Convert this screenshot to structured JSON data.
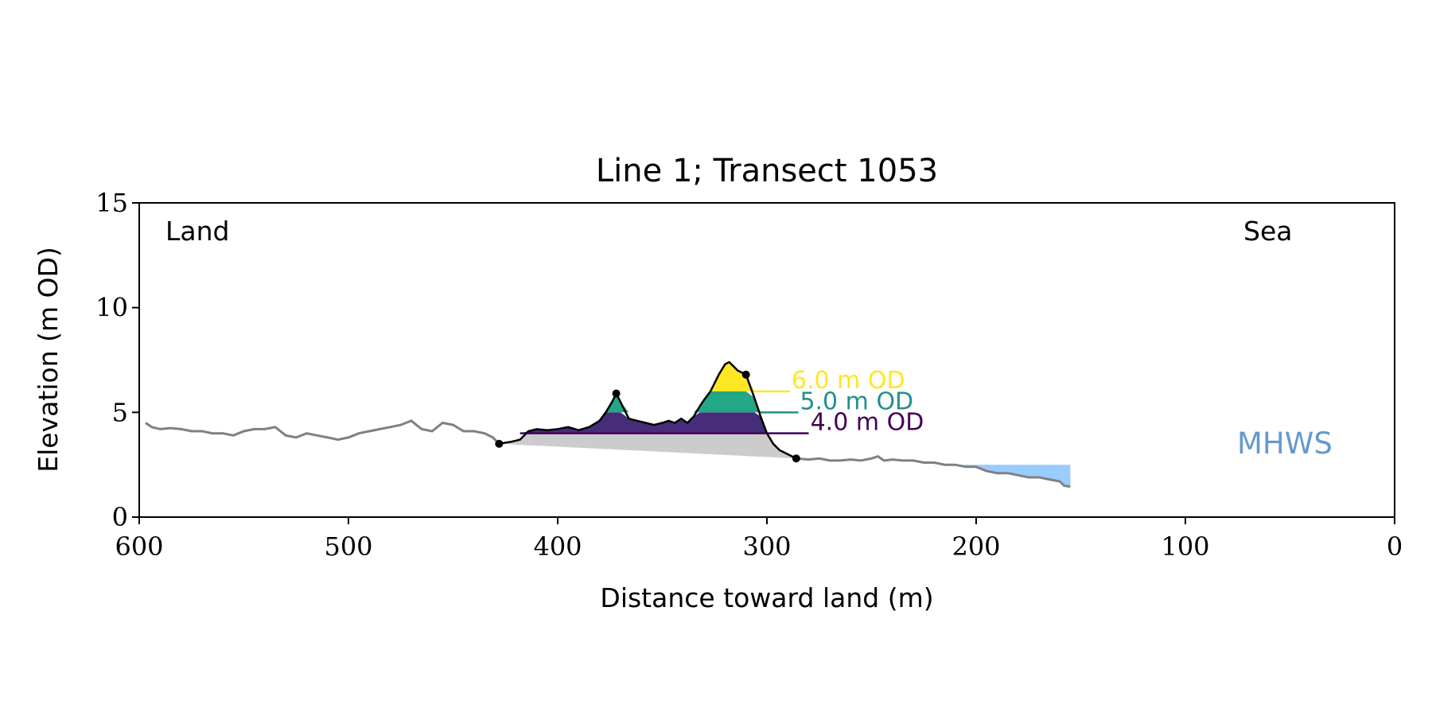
{
  "chart_data": {
    "type": "line",
    "title": "Line 1; Transect 1053",
    "xlabel": "Distance toward land (m)",
    "ylabel": "Elevation (m OD)",
    "xlim": [
      600,
      0
    ],
    "ylim": [
      0,
      15
    ],
    "xticks": [
      600,
      500,
      400,
      300,
      200,
      100,
      0
    ],
    "yticks": [
      0,
      5,
      10,
      15
    ],
    "annotations": {
      "land": "Land",
      "sea": "Sea",
      "mhws": "MHWS"
    },
    "mhws": {
      "elevation": 2.5,
      "x_start": 215,
      "x_end": 155
    },
    "colors": {
      "profile": "#808080",
      "dune": "#000000",
      "toe_crest_fill": "#cccccc",
      "level_4": "#440154",
      "level_5": "#21918c",
      "level_6": "#fde725",
      "water": "#99ccff",
      "mhws_text": "#6699cc"
    },
    "levels": [
      {
        "label": "4.0 m OD",
        "elevation": 4.0,
        "fill": "#472c7a",
        "color": "#440154",
        "line_to": 280
      },
      {
        "label": "5.0 m OD",
        "elevation": 5.0,
        "fill": "#22a884",
        "color": "#21918c",
        "line_to": 285
      },
      {
        "label": "6.0 m OD",
        "elevation": 6.0,
        "fill": "#fde725",
        "color": "#fde725",
        "line_to": 289
      }
    ],
    "dune_points": [
      {
        "name": "dune-toe-landward",
        "x": 428,
        "y": 3.5
      },
      {
        "name": "dune-peak-landward",
        "x": 372,
        "y": 5.9
      },
      {
        "name": "dune-crest",
        "x": 310,
        "y": 6.8
      },
      {
        "name": "dune-toe-seaward",
        "x": 286,
        "y": 2.8
      }
    ],
    "profile": {
      "x": [
        597,
        594,
        590,
        585,
        580,
        575,
        570,
        565,
        560,
        555,
        550,
        545,
        540,
        535,
        530,
        525,
        520,
        515,
        510,
        505,
        500,
        495,
        490,
        485,
        480,
        475,
        470,
        465,
        460,
        455,
        450,
        445,
        440,
        435,
        431,
        428
      ],
      "y": [
        4.5,
        4.3,
        4.2,
        4.25,
        4.2,
        4.1,
        4.1,
        4.0,
        4.0,
        3.9,
        4.1,
        4.2,
        4.2,
        4.3,
        3.9,
        3.8,
        4.0,
        3.9,
        3.8,
        3.7,
        3.8,
        4.0,
        4.1,
        4.2,
        4.3,
        4.4,
        4.6,
        4.2,
        4.1,
        4.5,
        4.4,
        4.1,
        4.1,
        4.0,
        3.8,
        3.5
      ]
    },
    "dune": {
      "x": [
        428,
        422,
        418,
        414,
        410,
        405,
        400,
        395,
        390,
        385,
        380,
        377,
        374,
        372,
        370,
        366,
        362,
        358,
        354,
        350,
        347,
        344,
        341,
        338,
        335,
        332,
        330,
        327,
        323,
        320,
        318,
        316,
        314,
        312,
        310,
        306,
        303,
        300,
        297,
        294,
        290,
        286
      ],
      "y": [
        3.5,
        3.6,
        3.7,
        4.1,
        4.2,
        4.15,
        4.2,
        4.3,
        4.15,
        4.3,
        4.6,
        5.0,
        5.5,
        5.9,
        5.5,
        4.7,
        4.6,
        4.5,
        4.4,
        4.5,
        4.6,
        4.5,
        4.7,
        4.5,
        4.8,
        5.3,
        5.6,
        6.0,
        6.8,
        7.3,
        7.4,
        7.2,
        7.0,
        6.9,
        6.8,
        5.7,
        4.8,
        4.0,
        3.5,
        3.2,
        3.0,
        2.8
      ]
    },
    "seaward": {
      "x": [
        286,
        280,
        275,
        270,
        265,
        260,
        255,
        250,
        247,
        244,
        240,
        235,
        230,
        225,
        220,
        215,
        210,
        205,
        200,
        195,
        190,
        185,
        180,
        175,
        170,
        165,
        160,
        158,
        155
      ],
      "y": [
        2.8,
        2.75,
        2.8,
        2.7,
        2.7,
        2.75,
        2.7,
        2.8,
        2.9,
        2.7,
        2.75,
        2.7,
        2.7,
        2.6,
        2.6,
        2.5,
        2.5,
        2.4,
        2.4,
        2.2,
        2.1,
        2.1,
        2.0,
        1.9,
        1.9,
        1.8,
        1.7,
        1.5,
        1.45
      ]
    }
  }
}
